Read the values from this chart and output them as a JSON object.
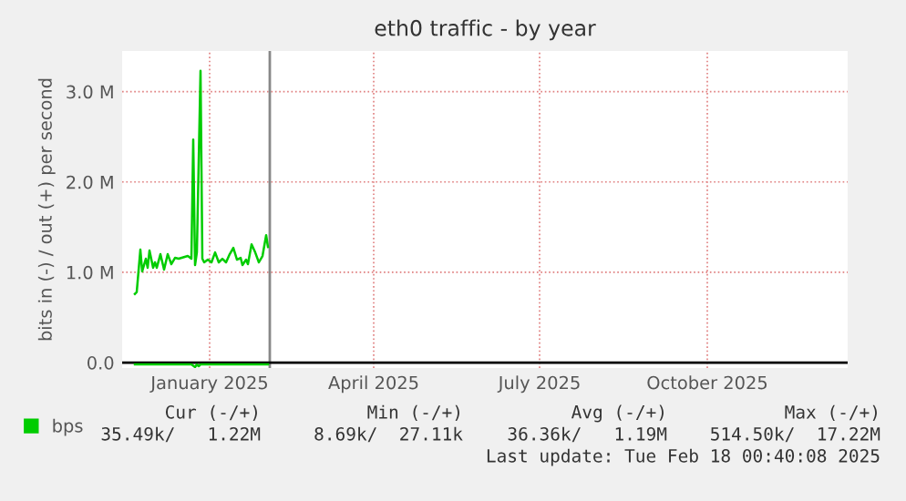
{
  "chart_data": {
    "type": "line",
    "title": "eth0 traffic - by year",
    "ylabel": "bits in (-) / out (+) per second",
    "xlim": [
      "2024-11-29",
      "2026-01-01"
    ],
    "xticks": [
      {
        "value": "2025-01-16",
        "label": "January 2025"
      },
      {
        "value": "2025-04-16",
        "label": "April 2025"
      },
      {
        "value": "2025-07-16",
        "label": "July 2025"
      },
      {
        "value": "2025-10-16",
        "label": "October 2025"
      }
    ],
    "ylim": [
      -0.06,
      3.45
    ],
    "yticks": [
      {
        "value": 0,
        "label": "0.0"
      },
      {
        "value": 1,
        "label": "1.0 M"
      },
      {
        "value": 2,
        "label": "2.0 M"
      },
      {
        "value": 3,
        "label": "3.0 M"
      }
    ],
    "grid": true,
    "legend": "bottom left",
    "line_style": "solid",
    "marker": "none",
    "series": [
      {
        "name": "bps",
        "color": "#00cc00",
        "x": [
          "2024-12-06",
          "2024-12-07",
          "2024-12-09",
          "2024-12-10",
          "2024-12-12",
          "2024-12-13",
          "2024-12-14",
          "2024-12-16",
          "2024-12-17",
          "2024-12-18",
          "2024-12-20",
          "2024-12-22",
          "2024-12-24",
          "2024-12-26",
          "2024-12-28",
          "2024-12-30",
          "2025-01-04",
          "2025-01-06",
          "2025-01-07",
          "2025-01-08",
          "2025-01-09",
          "2025-01-11",
          "2025-01-12",
          "2025-01-13",
          "2025-01-15",
          "2025-01-17",
          "2025-01-19",
          "2025-01-21",
          "2025-01-23",
          "2025-01-25",
          "2025-01-27",
          "2025-01-29",
          "2025-01-31",
          "2025-02-02",
          "2025-02-03",
          "2025-02-05",
          "2025-02-06",
          "2025-02-08",
          "2025-02-10",
          "2025-02-12",
          "2025-02-14",
          "2025-02-16",
          "2025-02-17"
        ],
        "values": [
          0.76,
          0.78,
          1.25,
          1.01,
          1.15,
          1.05,
          1.24,
          1.05,
          1.11,
          1.05,
          1.2,
          1.03,
          1.2,
          1.09,
          1.16,
          1.15,
          1.18,
          1.15,
          2.47,
          1.08,
          1.22,
          3.23,
          1.15,
          1.11,
          1.14,
          1.11,
          1.22,
          1.11,
          1.15,
          1.11,
          1.2,
          1.27,
          1.14,
          1.16,
          1.08,
          1.14,
          1.09,
          1.31,
          1.22,
          1.11,
          1.18,
          1.41,
          1.28
        ]
      },
      {
        "color": "#00cc00",
        "x": [
          "2024-12-06",
          "2025-01-06",
          "2025-01-08",
          "2025-01-09",
          "2025-01-10",
          "2025-01-11",
          "2025-02-17"
        ],
        "values": [
          -0.02,
          -0.02,
          -0.05,
          -0.02,
          -0.04,
          -0.02,
          -0.02
        ]
      }
    ],
    "ref_lines": [
      {
        "axis": "x",
        "value": "2025-02-18",
        "color": "#888888"
      },
      {
        "axis": "y",
        "value": 0,
        "color": "#000000"
      }
    ],
    "annotations": [
      "Cur (-/+)",
      "Min (-/+)",
      "Avg (-/+)",
      "Max (-/+)",
      "35.49k/   1.22M",
      "8.69k/  27.11k",
      "36.36k/   1.19M",
      "514.50k/  17.22M",
      "Last update: Tue Feb 18 00:40:08 2025"
    ]
  }
}
